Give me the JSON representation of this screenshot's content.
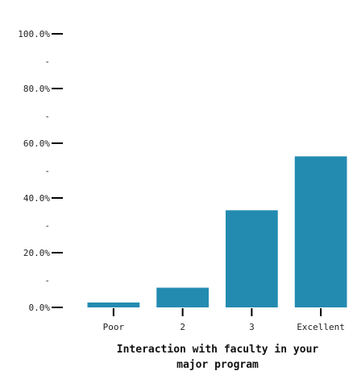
{
  "chart_data": {
    "type": "bar",
    "categories": [
      "Poor",
      "2",
      "3",
      "Excellent"
    ],
    "values": [
      1.8,
      7.2,
      35.5,
      55.2
    ],
    "ylim": [
      0,
      100
    ],
    "y_ticks_major": [
      0,
      20,
      40,
      60,
      80,
      100
    ],
    "y_ticks_minor": [
      10,
      30,
      50,
      70,
      90
    ],
    "y_tick_labels": [
      "0.0%",
      "20.0%",
      "40.0%",
      "60.0%",
      "80.0%",
      "100.0%"
    ],
    "minor_tick_label": "-",
    "xlabel_lines": [
      "Interaction with faculty in your",
      "major program"
    ],
    "ylabel": "",
    "title": "",
    "bar_color": "#238bb0",
    "grid": false,
    "legend": "none"
  }
}
